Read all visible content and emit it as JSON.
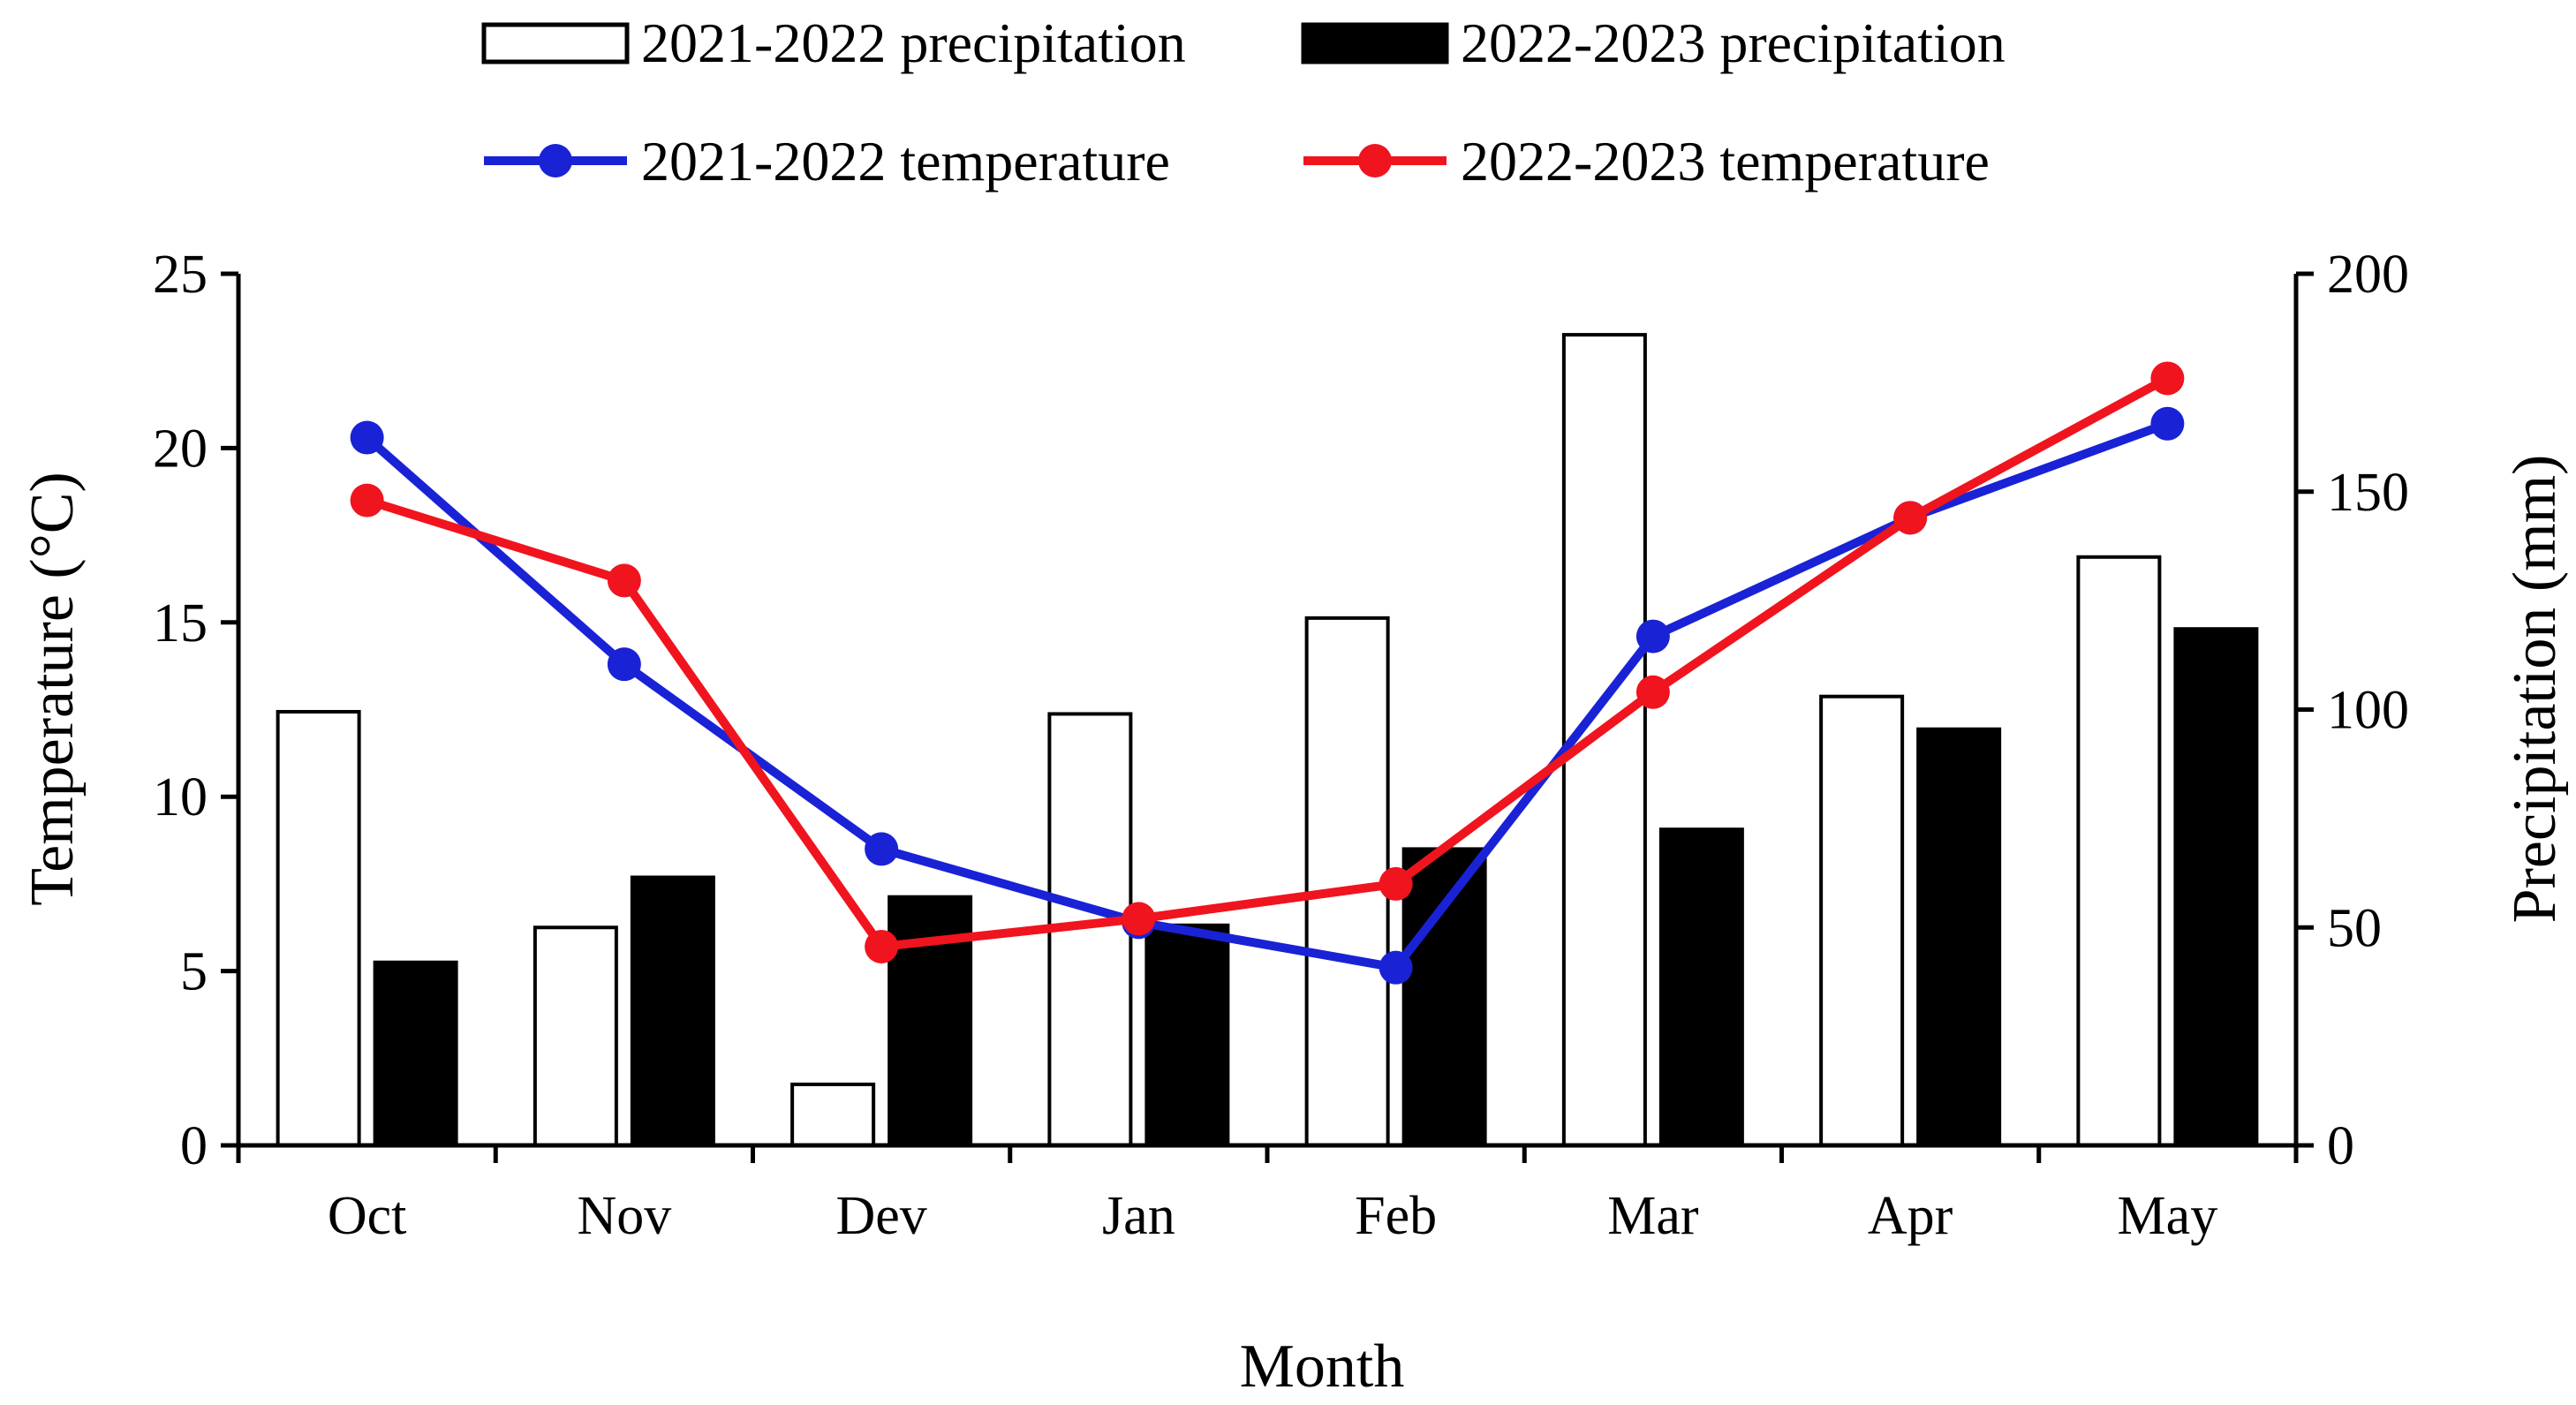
{
  "chart_data": {
    "type": "bar",
    "categories": [
      "Oct",
      "Nov",
      "Dev",
      "Jan",
      "Feb",
      "Mar",
      "Apr",
      "May"
    ],
    "xlabel": "Month",
    "ylabel_left": "Temperature (°C)",
    "ylabel_right": "Precipitation (mm)",
    "ylim_left": [
      0,
      25
    ],
    "ylim_right": [
      0,
      200
    ],
    "yticks_left": [
      "0",
      "5",
      "10",
      "15",
      "20",
      "25"
    ],
    "yticks_right": [
      "0",
      "50",
      "100",
      "150",
      "200"
    ],
    "grid": false,
    "legend_position": "top",
    "bar_series": [
      {
        "name": "2021-2022 precipitation",
        "axis": "right",
        "fill": "#ffffff",
        "stroke": "#000000",
        "values": [
          99.5,
          50,
          14,
          99,
          121,
          186,
          103,
          135
        ]
      },
      {
        "name": "2022-2023 precipitation",
        "axis": "right",
        "fill": "#000000",
        "stroke": "#000000",
        "values": [
          42,
          61.5,
          57,
          50.5,
          68,
          72.5,
          95.5,
          118.5
        ]
      }
    ],
    "line_series": [
      {
        "name": "2021-2022 temperature",
        "axis": "left",
        "color": "#1a22d6",
        "values": [
          20.3,
          13.8,
          8.5,
          6.4,
          5.1,
          14.6,
          18.0,
          20.7
        ]
      },
      {
        "name": "2022-2023 temperature",
        "axis": "left",
        "color": "#f0141e",
        "values": [
          18.5,
          16.2,
          5.7,
          6.5,
          7.5,
          13.0,
          18.0,
          22.0
        ]
      }
    ]
  }
}
